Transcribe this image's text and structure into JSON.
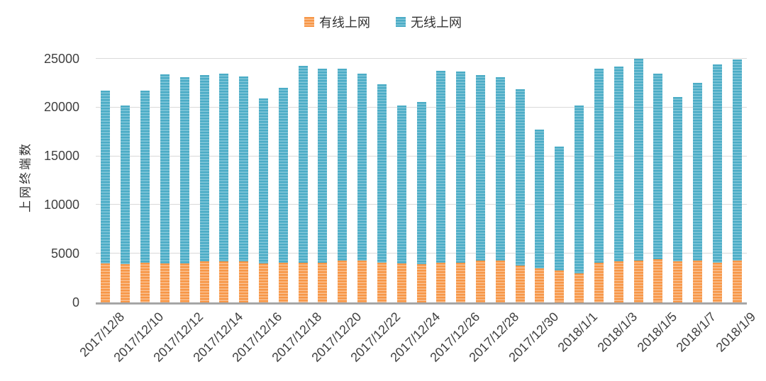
{
  "chart_data": {
    "type": "bar",
    "stacked": true,
    "title": "",
    "xlabel": "",
    "ylabel": "上网终端数",
    "ylim": [
      0,
      25000
    ],
    "yticks": [
      0,
      5000,
      10000,
      15000,
      20000,
      25000
    ],
    "grid": true,
    "legend_position": "top-center",
    "x_label_every": 2,
    "categories": [
      "2017/12/8",
      "2017/12/9",
      "2017/12/10",
      "2017/12/11",
      "2017/12/12",
      "2017/12/13",
      "2017/12/14",
      "2017/12/15",
      "2017/12/16",
      "2017/12/17",
      "2017/12/18",
      "2017/12/19",
      "2017/12/20",
      "2017/12/21",
      "2017/12/22",
      "2017/12/23",
      "2017/12/24",
      "2017/12/25",
      "2017/12/26",
      "2017/12/27",
      "2017/12/28",
      "2017/12/29",
      "2017/12/30",
      "2017/12/31",
      "2018/1/1",
      "2018/1/2",
      "2018/1/3",
      "2018/1/4",
      "2018/1/5",
      "2018/1/6",
      "2018/1/7",
      "2018/1/8",
      "2018/1/9"
    ],
    "series": [
      {
        "name": "有线上网",
        "color": "#F79646",
        "stripe_color": "#FAC294",
        "values": [
          4000,
          3900,
          4100,
          4000,
          4000,
          4200,
          4200,
          4200,
          4000,
          4100,
          4100,
          4100,
          4300,
          4300,
          4100,
          4000,
          3900,
          4100,
          4100,
          4300,
          4300,
          3800,
          3500,
          3300,
          3000,
          4100,
          4200,
          4300,
          4400,
          4200,
          4300,
          4100,
          4300
        ]
      },
      {
        "name": "无线上网",
        "color": "#4BACC6",
        "stripe_color": "#85C8DA",
        "values": [
          17700,
          16300,
          17600,
          19400,
          19100,
          19100,
          19300,
          19000,
          16900,
          17900,
          20200,
          19900,
          19700,
          19200,
          18300,
          16200,
          16700,
          19700,
          19600,
          19000,
          18800,
          18100,
          14200,
          12700,
          17200,
          19900,
          20000,
          20700,
          19100,
          16900,
          18200,
          20300,
          20600
        ]
      }
    ],
    "colors": {
      "gridline": "#D9D9D9",
      "axis_line": "#A6A6A6",
      "tick_text": "#404040"
    }
  }
}
